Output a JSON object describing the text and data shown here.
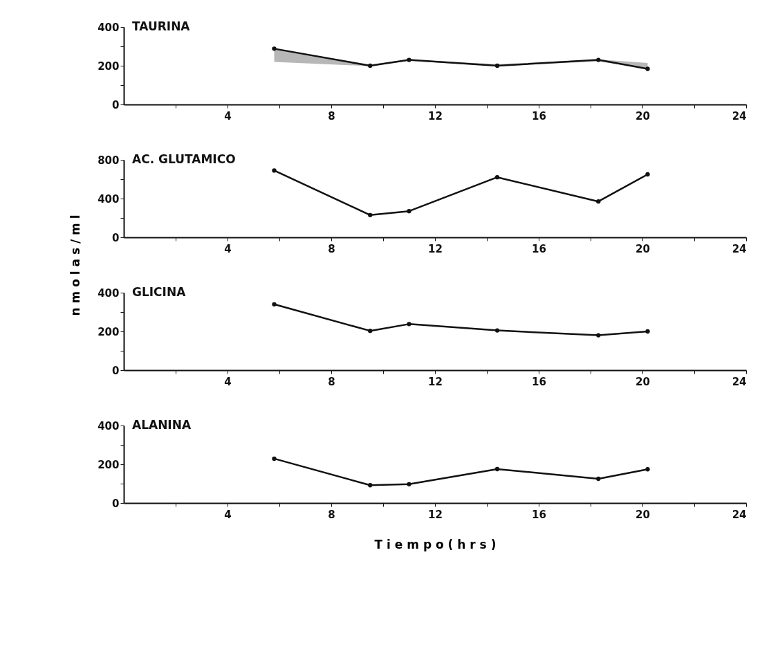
{
  "chart_data": [
    {
      "type": "line",
      "title": "TAURINA",
      "x": [
        5.8,
        9.5,
        11.0,
        14.4,
        18.3,
        20.2
      ],
      "xlim": [
        0,
        24
      ],
      "xticks": [
        {
          "value": 2,
          "label": null
        },
        4,
        {
          "value": 6,
          "label": null
        },
        8,
        {
          "value": 10,
          "label": null
        },
        12,
        {
          "value": 14,
          "label": null
        },
        16,
        {
          "value": 18,
          "label": null
        },
        20,
        {
          "value": 22,
          "label": null
        },
        24
      ],
      "ylim": [
        0,
        400
      ],
      "yticks": [
        0,
        {
          "value": 100,
          "label": null
        },
        200,
        {
          "value": 300,
          "label": null
        },
        400
      ],
      "series": [
        {
          "color": "#111111",
          "values": [
            288,
            200,
            230,
            200,
            230,
            184
          ],
          "lower": [
            220,
            198,
            225,
            198,
            222,
            186
          ],
          "upper": [
            288,
            206,
            232,
            208,
            232,
            214
          ]
        }
      ],
      "grid": false,
      "marker": "circle",
      "line_style": "solid"
    },
    {
      "type": "line",
      "title": "AC. GLUTAMICO",
      "x": [
        5.8,
        9.5,
        11.0,
        14.4,
        18.3,
        20.2
      ],
      "xlim": [
        0,
        24
      ],
      "xticks": [
        {
          "value": 2,
          "label": null
        },
        4,
        {
          "value": 6,
          "label": null
        },
        8,
        {
          "value": 10,
          "label": null
        },
        12,
        {
          "value": 14,
          "label": null
        },
        16,
        {
          "value": 18,
          "label": null
        },
        20,
        {
          "value": 22,
          "label": null
        },
        24
      ],
      "ylim": [
        0,
        800
      ],
      "yticks": [
        0,
        {
          "value": 200,
          "label": null
        },
        400,
        {
          "value": 600,
          "label": null
        },
        800
      ],
      "ylabel": "n m o l a s / m l",
      "series": [
        {
          "color": "#111111",
          "values": [
            690,
            230,
            270,
            620,
            370,
            650
          ]
        }
      ],
      "grid": false,
      "marker": "circle",
      "line_style": "solid"
    },
    {
      "type": "line",
      "title": "GLICINA",
      "x": [
        5.8,
        9.5,
        11.0,
        14.4,
        18.3,
        20.2
      ],
      "xlim": [
        0,
        24
      ],
      "xticks": [
        {
          "value": 2,
          "label": null
        },
        4,
        {
          "value": 6,
          "label": null
        },
        8,
        {
          "value": 10,
          "label": null
        },
        12,
        {
          "value": 14,
          "label": null
        },
        16,
        {
          "value": 18,
          "label": null
        },
        20,
        {
          "value": 22,
          "label": null
        },
        24
      ],
      "ylim": [
        0,
        400
      ],
      "yticks": [
        0,
        {
          "value": 100,
          "label": null
        },
        200,
        {
          "value": 300,
          "label": null
        },
        400
      ],
      "series": [
        {
          "color": "#111111",
          "values": [
            340,
            203,
            238,
            205,
            180,
            200
          ]
        }
      ],
      "grid": false,
      "marker": "circle",
      "line_style": "solid"
    },
    {
      "type": "line",
      "title": "ALANINA",
      "x": [
        5.8,
        9.5,
        11.0,
        14.4,
        18.3,
        20.2
      ],
      "xlim": [
        0,
        24
      ],
      "xticks": [
        {
          "value": 2,
          "label": null
        },
        4,
        {
          "value": 6,
          "label": null
        },
        8,
        {
          "value": 10,
          "label": null
        },
        12,
        {
          "value": 14,
          "label": null
        },
        16,
        {
          "value": 18,
          "label": null
        },
        20,
        {
          "value": 22,
          "label": null
        },
        24
      ],
      "ylim": [
        0,
        400
      ],
      "yticks": [
        0,
        {
          "value": 100,
          "label": null
        },
        200,
        {
          "value": 300,
          "label": null
        },
        400
      ],
      "xlabel": "T i e m p o   ( h r s )",
      "series": [
        {
          "color": "#111111",
          "values": [
            229,
            92,
            97,
            175,
            125,
            174
          ]
        }
      ],
      "grid": false,
      "marker": "circle",
      "line_style": "solid"
    }
  ]
}
